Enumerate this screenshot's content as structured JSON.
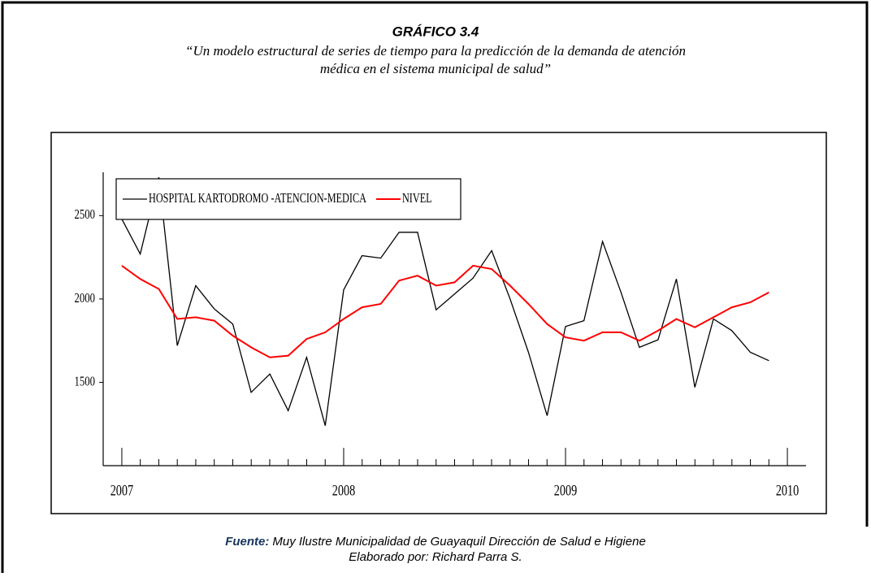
{
  "document": {
    "title": "GRÁFICO 3.4",
    "subtitle_lines": [
      "“Un modelo estructural de series de tiempo para la predicción de la demanda de atención",
      "médica en el sistema municipal de salud”"
    ],
    "source_label": "Fuente:",
    "source_text": "Muy Ilustre Municipalidad de Guayaquil Dirección de Salud e Higiene",
    "credit": "Elaborado por: Richard Parra S."
  },
  "chart_data": {
    "type": "line",
    "legend": "upper left",
    "x": [
      2007,
      2007.083,
      2007.167,
      2007.25,
      2007.333,
      2007.417,
      2007.5,
      2007.583,
      2007.667,
      2007.75,
      2007.833,
      2007.917,
      2008,
      2008.083,
      2008.167,
      2008.25,
      2008.333,
      2008.417,
      2008.5,
      2008.583,
      2008.667,
      2008.75,
      2008.833,
      2008.917,
      2009,
      2009.083,
      2009.167,
      2009.25,
      2009.333,
      2009.417,
      2009.5,
      2009.583,
      2009.667,
      2009.75,
      2009.833,
      2009.917
    ],
    "xlim": [
      2006.916,
      2010.084
    ],
    "xticks": [
      2007,
      2008,
      2009,
      2010
    ],
    "ylim": [
      1000,
      2760
    ],
    "yticks": [
      1500,
      2000,
      2500
    ],
    "series": [
      {
        "name": "HOSPITAL KARTODROMO -ATENCION-MEDICA",
        "color": "#000000",
        "values": [
          2480,
          2270,
          2730,
          1720,
          2080,
          1940,
          1850,
          1440,
          1550,
          1330,
          1650,
          1240,
          2055,
          2260,
          2245,
          2400,
          2400,
          1935,
          2030,
          2125,
          2290,
          2000,
          1680,
          1300,
          1835,
          1870,
          2345,
          2040,
          1710,
          1755,
          2120,
          1470,
          1880,
          1810,
          1680,
          1630
        ]
      },
      {
        "name": "NIVEL",
        "color": "#ff0000",
        "values": [
          2200,
          2120,
          2060,
          1880,
          1890,
          1870,
          1780,
          1710,
          1650,
          1660,
          1760,
          1800,
          1880,
          1950,
          1970,
          2110,
          2140,
          2080,
          2100,
          2200,
          2180,
          2080,
          1970,
          1850,
          1770,
          1750,
          1800,
          1800,
          1750,
          1810,
          1880,
          1830,
          1890,
          1950,
          1980,
          2040
        ]
      }
    ]
  }
}
